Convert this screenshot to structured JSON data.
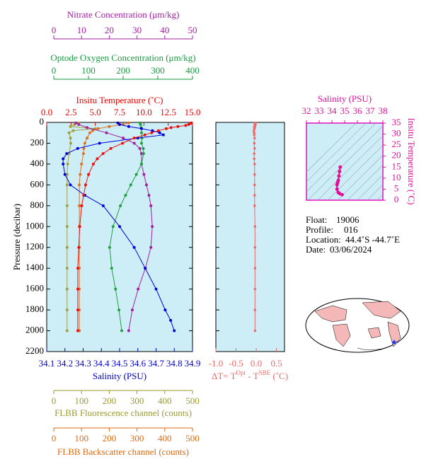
{
  "chart_data": [
    {
      "type": "profile",
      "ylabel": "Pressure (decibar)",
      "ylim": [
        0,
        2200
      ],
      "yticks": [
        0,
        200,
        400,
        600,
        800,
        1000,
        1200,
        1400,
        1600,
        1800,
        2000,
        2200
      ],
      "axes": {
        "nitrate": {
          "label": "Nitrate Concentration (μm/kg)",
          "color": "#a020a0",
          "xlim": [
            0,
            50
          ],
          "xticks": [
            0,
            10,
            20,
            30,
            40,
            50
          ]
        },
        "oxygen": {
          "label": "Optode Oxygen Concentration (μm/kg)",
          "color": "#1a9a40",
          "xlim": [
            0,
            400
          ],
          "xticks": [
            0,
            100,
            200,
            300,
            400
          ]
        },
        "temperature": {
          "label": "Insitu Temperature (˚C)",
          "color": "#ee0000",
          "xlim": [
            0,
            15
          ],
          "xticks": [
            {
              "value": 0,
              "label": "0.0"
            },
            2.5,
            {
              "value": 5,
              "label": "5.0"
            },
            7.5,
            {
              "value": 10,
              "label": "10.0"
            },
            12.5,
            {
              "value": 15,
              "label": "15.0"
            }
          ]
        },
        "salinity": {
          "label": "Salinity (PSU)",
          "color": "#0000cc",
          "xlim": [
            34.1,
            34.9
          ],
          "xticks": [
            34.1,
            34.2,
            34.3,
            34.4,
            34.5,
            34.6,
            34.7,
            34.8,
            34.9
          ]
        },
        "fluorescence": {
          "label": "FLBB Fluorescence channel (counts)",
          "color": "#9a9a30",
          "xlim": [
            0,
            500
          ],
          "xticks": [
            0,
            100,
            200,
            300,
            400,
            500
          ]
        },
        "backscatter": {
          "label": "FLBB Backscatter channel (counts)",
          "color": "#e06a10",
          "xlim": [
            0,
            500
          ],
          "xticks": [
            0,
            100,
            200,
            300,
            400,
            500
          ]
        }
      },
      "series": [
        {
          "axis": "fluorescence",
          "color": "#a0a040",
          "pressure": [
            5,
            20,
            40,
            60,
            80,
            100,
            150,
            200,
            300,
            400,
            500,
            600,
            800,
            1000,
            1200,
            1400,
            1600,
            1800,
            2000
          ],
          "values": [
            90,
            75,
            60,
            150,
            70,
            55,
            60,
            61,
            55,
            50,
            48,
            48,
            48,
            48,
            48,
            48,
            48,
            48,
            48
          ]
        },
        {
          "axis": "backscatter",
          "color": "#e07020",
          "pressure": [
            5,
            20,
            40,
            60,
            80,
            100,
            150,
            200,
            250,
            300,
            400,
            500,
            600,
            800,
            1000,
            1200,
            1400,
            1600,
            1800,
            2000
          ],
          "values": [
            270,
            250,
            200,
            160,
            140,
            130,
            120,
            112,
            108,
            107,
            100,
            95,
            92,
            92,
            92,
            92,
            92,
            92,
            92,
            92
          ]
        },
        {
          "axis": "nitrate",
          "color": "#a020a0",
          "pressure": [
            5,
            20,
            50,
            100,
            150,
            200,
            250,
            300,
            400,
            500,
            600,
            700,
            800,
            1000,
            1200,
            1400,
            1600,
            1800,
            2000
          ],
          "values": [
            8,
            9,
            12,
            19,
            25,
            29,
            31,
            31.6,
            31.6,
            32.5,
            33.4,
            34.3,
            35,
            35.5,
            35,
            33,
            30.4,
            28.3,
            27
          ]
        },
        {
          "axis": "oxygen",
          "color": "#20a040",
          "pressure": [
            5,
            20,
            50,
            100,
            150,
            200,
            250,
            300,
            400,
            500,
            600,
            700,
            800,
            1000,
            1200,
            1400,
            1600,
            1800,
            2000
          ],
          "values": [
            249,
            250,
            252,
            253,
            254,
            253,
            258,
            259,
            253,
            238,
            222,
            207,
            192,
            171,
            161,
            167,
            178,
            188,
            196
          ]
        },
        {
          "axis": "salinity",
          "color": "#0000dd",
          "pressure": [
            5,
            20,
            40,
            60,
            80,
            100,
            120,
            150,
            200,
            250,
            300,
            350,
            400,
            500,
            600,
            700,
            800,
            1000,
            1200,
            1400,
            1600,
            1800,
            1900,
            2000
          ],
          "values": [
            34.49,
            34.5,
            34.55,
            34.62,
            34.68,
            34.72,
            34.74,
            34.6,
            34.39,
            34.27,
            34.21,
            34.19,
            34.19,
            34.2,
            34.23,
            34.31,
            34.41,
            34.5,
            34.58,
            34.64,
            34.7,
            34.75,
            34.78,
            34.8
          ]
        },
        {
          "axis": "temperature",
          "color": "#ee1010",
          "pressure": [
            5,
            10,
            20,
            30,
            40,
            50,
            60,
            80,
            100,
            120,
            150,
            200,
            250,
            300,
            350,
            400,
            500,
            600,
            700,
            800,
            1000,
            1200,
            1400,
            1600,
            1800,
            2000
          ],
          "values": [
            14.9,
            14.8,
            14.6,
            14.3,
            13.5,
            12.8,
            12.3,
            11.5,
            10.8,
            10.1,
            9.0,
            7.8,
            6.6,
            5.8,
            5.2,
            4.8,
            4.3,
            4.0,
            3.8,
            3.6,
            3.4,
            3.3,
            3.2,
            3.2,
            3.2,
            3.2
          ]
        }
      ]
    },
    {
      "type": "difference",
      "xlabel": [
        "ΔT= T",
        "Opt",
        " - T",
        "SBE",
        " (˚C)"
      ],
      "color": "#f06868",
      "xlim": [
        -1.0,
        0.7
      ],
      "xticks": [
        {
          "value": -1,
          "label": "-1.0"
        },
        -0.5,
        {
          "value": 0,
          "label": "0.0"
        },
        0.5
      ],
      "ylim": [
        0,
        2200
      ],
      "yticks": [
        0,
        200,
        400,
        600,
        800,
        1000,
        1200,
        1400,
        1600,
        1800,
        2000,
        2200
      ],
      "pressure": [
        5,
        10,
        20,
        30,
        40,
        50,
        60,
        80,
        100,
        120,
        150,
        200,
        250,
        300,
        350,
        400,
        500,
        600,
        700,
        800,
        1000,
        1200,
        1400,
        1600,
        1800,
        2000
      ],
      "values": [
        -0.02,
        -0.03,
        -0.02,
        -0.04,
        -0.03,
        -0.05,
        -0.04,
        -0.06,
        -0.05,
        -0.05,
        -0.04,
        -0.05,
        -0.04,
        -0.05,
        -0.05,
        -0.04,
        -0.04,
        -0.04,
        -0.04,
        -0.04,
        -0.03,
        -0.03,
        -0.03,
        -0.03,
        -0.03,
        -0.03
      ]
    },
    {
      "type": "ts",
      "xlabel": "Salinity (PSU)",
      "ylabel": "Insitu Temperature (˚C)",
      "color": "#e0109a",
      "xlim": [
        32,
        38
      ],
      "xticks": [
        32,
        33,
        34,
        35,
        36,
        37,
        38
      ],
      "ylim": [
        0,
        35
      ],
      "yticks": [
        0,
        5,
        10,
        15,
        20,
        25,
        30,
        35
      ],
      "x": [
        34.8,
        34.6,
        34.5,
        34.4,
        34.4,
        34.45,
        34.5,
        34.55,
        34.6,
        34.65
      ],
      "values": [
        2.5,
        3.0,
        3.5,
        5,
        7,
        8,
        9,
        11,
        13,
        15
      ]
    }
  ],
  "float_info": [
    [
      "Float:",
      "19006"
    ],
    [
      "Profile:",
      "016"
    ],
    [
      "Location:",
      "44.4˚S  -44.7˚E"
    ],
    [
      "Date:",
      "03/06/2024"
    ]
  ]
}
